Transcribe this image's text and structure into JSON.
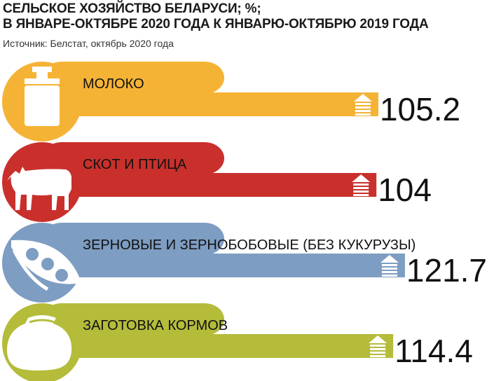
{
  "title_line1": "СЕЛЬСКОЕ ХОЗЯЙСТВО БЕЛАРУСИ; %;",
  "title_line2": "В ЯНВАРЕ-ОКТЯБРЕ 2020 ГОДА К ЯНВАРЮ-ОКТЯБРЮ 2019 ГОДА",
  "source": "Источник: Белстат, октябрь 2020 года",
  "chart_data": {
    "type": "bar",
    "orientation": "horizontal",
    "categories": [
      "МОЛОКО",
      "СКОТ И ПТИЦА",
      "ЗЕРНОВЫЕ И ЗЕРНОБОБОВЫЕ (БЕЗ КУКУРУЗЫ)",
      "ЗАГОТОВКА КОРМОВ"
    ],
    "values": [
      105.2,
      104,
      121.7,
      114.4
    ],
    "value_labels": [
      "105.2",
      "104",
      "121.7",
      "114.4"
    ],
    "title": "СЕЛЬСКОЕ ХОЗЯЙСТВО БЕЛАРУСИ; %; В ЯНВАРЕ-ОКТЯБРЕ 2020 ГОДА К ЯНВАРЮ-ОКТЯБРЮ 2019 ГОДА",
    "xlabel": "",
    "ylabel": "",
    "grid": false,
    "icons": [
      "milk-can-icon",
      "cow-icon",
      "bean-pod-icon",
      "feed-sack-icon"
    ],
    "colors": [
      "#F5B335",
      "#C9302C",
      "#7E9DC2",
      "#B4BC3A"
    ]
  }
}
